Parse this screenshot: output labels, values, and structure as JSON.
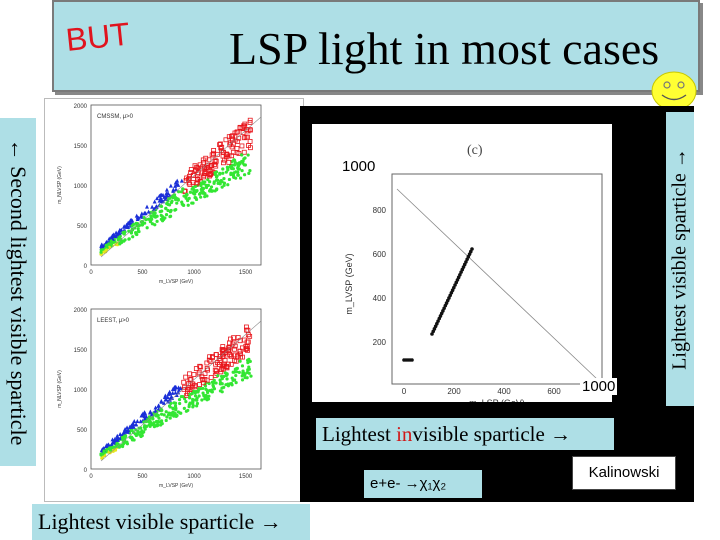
{
  "slide": {
    "title": "LSP light in most cases",
    "stamp": "BUT",
    "left_axis_label": "← Second lightest visible sparticle",
    "right_axis_label": "Lightest visible sparticle →",
    "bottom_label": "Lightest visible sparticle →",
    "invisible_label_prefix": "Lightest ",
    "invisible_label_red": "in",
    "invisible_label_suffix": "visible sparticle →",
    "process_label": "e+e- →χ₁χ₂",
    "credit": "Kalinowski",
    "m_top": "1000",
    "m_bottom": "1000"
  },
  "left_plots": [
    {
      "tag": "CMSSM, μ>0",
      "ylabel": "m_NLVSP (GeV)",
      "xlabel": "m_LVSP (GeV)",
      "yticks": [
        "2000",
        "1500",
        "1000",
        "500",
        "0"
      ],
      "xticks": [
        "0",
        "500",
        "1000",
        "1500"
      ]
    },
    {
      "tag": "LEEST, μ>0",
      "ylabel": "m_NLVSP (GeV)",
      "xlabel": "m_LVSP (GeV)",
      "yticks": [
        "2000",
        "1500",
        "1000",
        "500",
        "0"
      ],
      "xticks": [
        "0",
        "500",
        "1000",
        "1500"
      ]
    }
  ],
  "right_plot": {
    "tag": "(c)",
    "ylabel": "m_LVSP (GeV)",
    "xlabel": "m_LSP (GeV)",
    "yticks": [
      "800",
      "600",
      "400",
      "200"
    ],
    "xticks": [
      "0",
      "200",
      "400",
      "600",
      "800"
    ]
  },
  "colors": {
    "scatter_red": "#e8161c",
    "scatter_green": "#33e633",
    "scatter_blue": "#1a2fd8",
    "scatter_yellow": "#e6e61a",
    "panel_bg": "#aedfe6"
  }
}
